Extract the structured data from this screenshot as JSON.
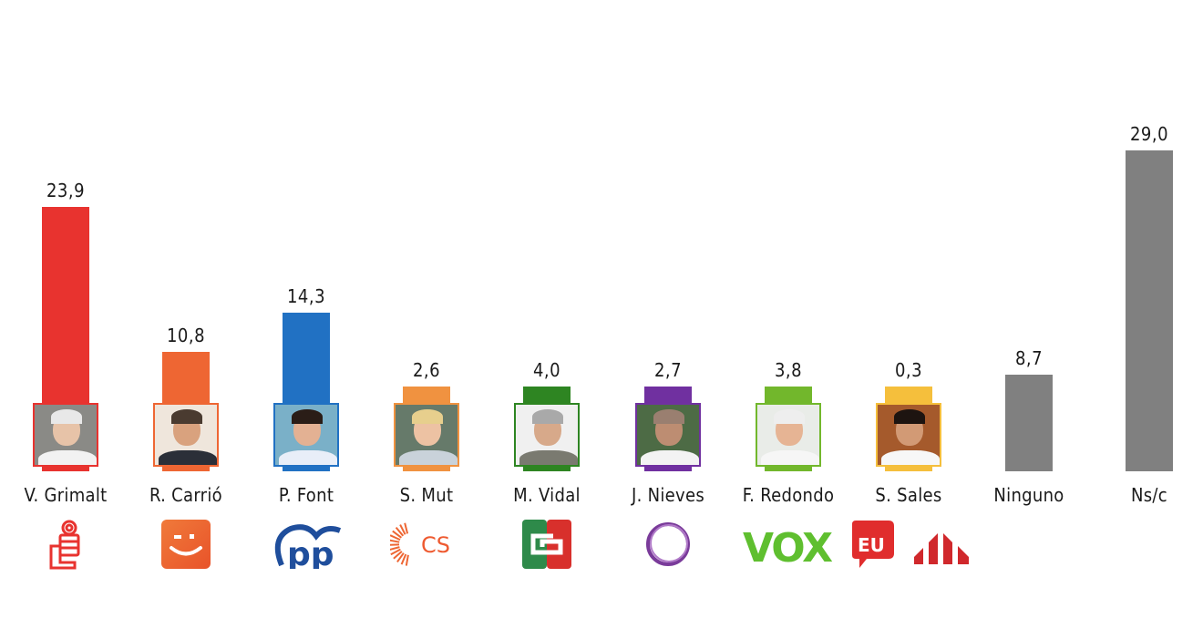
{
  "chart_data": {
    "type": "bar",
    "title": "",
    "xlabel": "",
    "ylabel": "",
    "ylim": [
      0,
      30
    ],
    "grid": false,
    "legend": "none",
    "categories": [
      "V. Grimalt",
      "R. Carrió",
      "P. Font",
      "S. Mut",
      "M. Vidal",
      "J. Nieves",
      "F. Redondo",
      "S. Sales",
      "Ninguno",
      "Ns/c"
    ],
    "values": [
      23.9,
      10.8,
      14.3,
      2.6,
      4.0,
      2.7,
      3.8,
      0.3,
      8.7,
      29.0
    ],
    "value_labels": [
      "23,9",
      "10,8",
      "14,3",
      "2,6",
      "4,0",
      "2,7",
      "3,8",
      "0,3",
      "8,7",
      "29,0"
    ],
    "colors": [
      "#e8332f",
      "#ee6633",
      "#2171c3",
      "#f09240",
      "#2e8522",
      "#7030a0",
      "#72b72c",
      "#f5bf3c",
      "#808080",
      "#808080"
    ],
    "parties": [
      "PSOE",
      "Més",
      "PP",
      "Cs",
      "El Pi / PI",
      "Podemos",
      "VOX",
      "EU / ERC",
      "",
      ""
    ]
  },
  "bars": [
    {
      "name": "V. Grimalt",
      "label": "23,9",
      "color": "#e8332f",
      "logo": "psoe-rose-fist-logo"
    },
    {
      "name": "R. Carrió",
      "label": "10,8",
      "color": "#ee6633",
      "logo": "mes-smile-logo"
    },
    {
      "name": "P. Font",
      "label": "14,3",
      "color": "#2171c3",
      "logo": "pp-logo"
    },
    {
      "name": "S. Mut",
      "label": "2,6",
      "color": "#f09240",
      "logo": "cs-logo"
    },
    {
      "name": "M. Vidal",
      "label": "4,0",
      "color": "#2e8522",
      "logo": "el-pi-logo"
    },
    {
      "name": "J. Nieves",
      "label": "2,7",
      "color": "#7030a0",
      "logo": "podemos-circle-logo"
    },
    {
      "name": "F. Redondo",
      "label": "3,8",
      "color": "#72b72c",
      "logo": "vox-logo"
    },
    {
      "name": "S. Sales",
      "label": "0,3",
      "color": "#f5bf3c",
      "logo": "eu-erc-logos"
    },
    {
      "name": "Ninguno",
      "label": "8,7",
      "color": "#808080",
      "logo": ""
    },
    {
      "name": "Ns/c",
      "label": "29,0",
      "color": "#808080",
      "logo": ""
    }
  ],
  "logos": {
    "cs_text": "CS",
    "vox_text": "VOX",
    "pp_text": "pp",
    "eu_text": "EU"
  }
}
